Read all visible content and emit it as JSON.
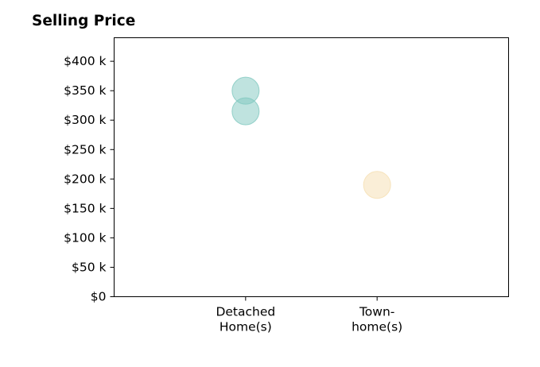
{
  "chart_data": {
    "type": "scatter",
    "title": "Selling Price",
    "xlabel": "",
    "ylabel": "",
    "categories": [
      [
        "Detached",
        "Home(s)"
      ],
      [
        "Town-",
        "home(s)"
      ]
    ],
    "y_ticks": [
      {
        "value": 0,
        "label": "$0"
      },
      {
        "value": 50000,
        "label": "$50 k"
      },
      {
        "value": 100000,
        "label": "$100 k"
      },
      {
        "value": 150000,
        "label": "$150 k"
      },
      {
        "value": 200000,
        "label": "$200 k"
      },
      {
        "value": 250000,
        "label": "$250 k"
      },
      {
        "value": 300000,
        "label": "$300 k"
      },
      {
        "value": 350000,
        "label": "$350 k"
      },
      {
        "value": 400000,
        "label": "$400 k"
      }
    ],
    "ylim": [
      0,
      440000
    ],
    "xlim": [
      0,
      3
    ],
    "grid": false,
    "points": [
      {
        "category_index": 0,
        "value": 350000,
        "color": "#7fc8bf"
      },
      {
        "category_index": 0,
        "value": 315000,
        "color": "#7fc8bf"
      },
      {
        "category_index": 1,
        "value": 190000,
        "color": "#f5deb0"
      }
    ],
    "colors": {
      "detached": "#7fc8bf",
      "townhome": "#f5deb0"
    }
  }
}
